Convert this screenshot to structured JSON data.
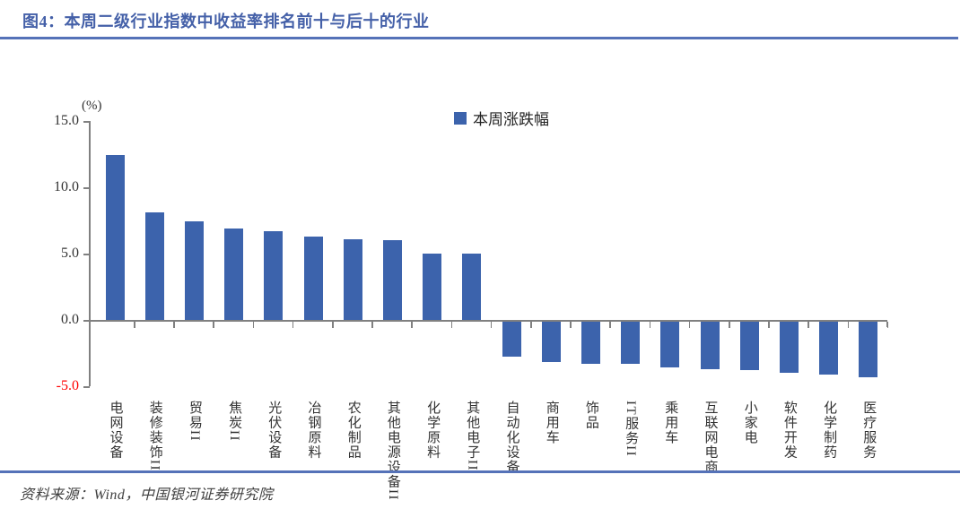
{
  "figure": {
    "title": "图4：本周二级行业指数中收益率排名前十与后十的行业",
    "source_label": "资料来源：Wind，中国银河证券研究院"
  },
  "colors": {
    "bar": "#3C63AC",
    "accent_rule": "#5572B8",
    "title_text": "#4460A8",
    "axis_line": "#808080",
    "tick_label": "#333333",
    "negative_tick_label": "#FF0000",
    "source_text": "#404040"
  },
  "chart_data": {
    "type": "bar",
    "title": "本周二级行业指数中收益率排名前十与后十的行业",
    "unit_label": "(%)",
    "legend": [
      "本周涨跌幅"
    ],
    "legend_position": "top-center",
    "grid": false,
    "ylim": [
      -5.0,
      15.0
    ],
    "yticks": [
      {
        "value": 15.0,
        "label": "15.0"
      },
      {
        "value": 10.0,
        "label": "10.0"
      },
      {
        "value": 5.0,
        "label": "5.0"
      },
      {
        "value": 0.0,
        "label": "0.0"
      },
      {
        "value": -5.0,
        "label": "-5.0"
      }
    ],
    "categories": [
      "电网设备",
      "装修装饰II",
      "贸易II",
      "焦炭II",
      "光伏设备",
      "冶钢原料",
      "农化制品",
      "其他电源设备II",
      "化学原料",
      "其他电子II",
      "自动化设备",
      "商用车",
      "饰品",
      "IT服务II",
      "乘用车",
      "互联网电商",
      "小家电",
      "软件开发",
      "化学制药",
      "医疗服务"
    ],
    "values": [
      12.4,
      8.1,
      7.4,
      6.9,
      6.7,
      6.3,
      6.1,
      6.0,
      5.0,
      5.0,
      -2.7,
      -3.1,
      -3.2,
      -3.2,
      -3.5,
      -3.6,
      -3.7,
      -3.9,
      -4.0,
      -4.2
    ]
  }
}
